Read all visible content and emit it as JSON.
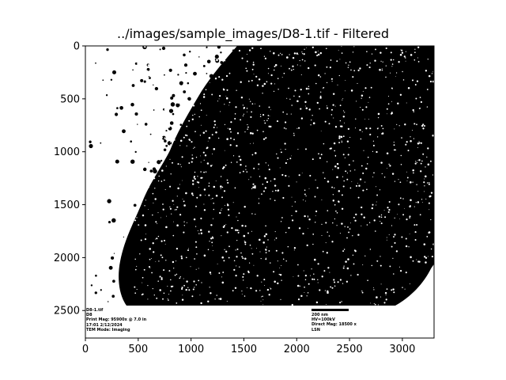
{
  "figure": {
    "title": "../images/sample_images/D8-1.tif - Filtered"
  },
  "axes": {
    "x_ticks": [
      "0",
      "500",
      "1000",
      "1500",
      "2000",
      "2500",
      "3000"
    ],
    "y_ticks": [
      "0",
      "500",
      "1000",
      "1500",
      "2000",
      "2500"
    ]
  },
  "image_annotation": {
    "left_block": [
      "D8-1.tif",
      "D8",
      "Print Mag:  95900x @ 7.0 in",
      "17:01 2/12/2024",
      "TEM Mode: Imaging"
    ],
    "right_block": [
      "200 nm",
      "HV=100kV",
      "Direct Mag: 18500 x",
      "LSN"
    ]
  },
  "colors": {
    "foreground": "#000000",
    "background": "#ffffff"
  }
}
